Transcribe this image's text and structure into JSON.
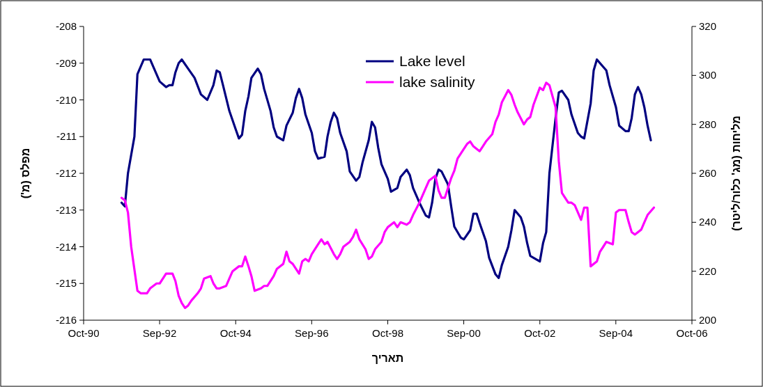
{
  "chart_data": {
    "type": "line",
    "xlabel": "תאריך",
    "ylabel": "מפלס (מ')",
    "y2label": "מליחות (מג' כלור/ליטר)",
    "xlim": [
      "1990-10-01",
      "2006-10-01"
    ],
    "xticks": [
      {
        "value": "1990-10-01",
        "label": "Oct-90"
      },
      {
        "value": "1992-09-30",
        "label": "Sep-92"
      },
      {
        "value": "1994-10-01",
        "label": "Oct-94"
      },
      {
        "value": "1996-09-30",
        "label": "Sep-96"
      },
      {
        "value": "1998-10-01",
        "label": "Oct-98"
      },
      {
        "value": "2000-09-30",
        "label": "Sep-00"
      },
      {
        "value": "2002-10-01",
        "label": "Oct-02"
      },
      {
        "value": "2004-09-30",
        "label": "Sep-04"
      },
      {
        "value": "2006-10-01",
        "label": "Oct-06"
      }
    ],
    "ylim": [
      -216,
      -208
    ],
    "yticks": [
      -216,
      -215,
      -214,
      -213,
      -212,
      -211,
      -210,
      -209,
      -208
    ],
    "y2lim": [
      200,
      320
    ],
    "y2ticks": [
      200,
      220,
      240,
      260,
      280,
      300,
      320
    ],
    "legend": "top",
    "line_style": "solid",
    "marker": "none",
    "series": [
      {
        "name": "Lake level",
        "color": "#000080",
        "x": [
          "1991-10",
          "1991-11",
          "1991-12",
          "1992-02",
          "1992-03",
          "1992-05",
          "1992-07",
          "1992-08",
          "1992-10",
          "1992-12",
          "1993-01",
          "1993-02",
          "1993-03",
          "1993-04",
          "1993-05",
          "1993-07",
          "1993-09",
          "1993-11",
          "1994-01",
          "1994-03",
          "1994-04",
          "1994-05",
          "1994-06",
          "1994-08",
          "1994-10",
          "1994-11",
          "1994-12",
          "1995-01",
          "1995-02",
          "1995-03",
          "1995-05",
          "1995-06",
          "1995-07",
          "1995-09",
          "1995-10",
          "1995-11",
          "1996-01",
          "1996-02",
          "1996-04",
          "1996-05",
          "1996-06",
          "1996-07",
          "1996-08",
          "1996-10",
          "1996-11",
          "1996-12",
          "1997-02",
          "1997-03",
          "1997-04",
          "1997-05",
          "1997-06",
          "1997-07",
          "1997-09",
          "1997-10",
          "1997-12",
          "1998-01",
          "1998-02",
          "1998-04",
          "1998-05",
          "1998-06",
          "1998-07",
          "1998-08",
          "1998-10",
          "1998-11",
          "1999-01",
          "1999-02",
          "1999-04",
          "1999-05",
          "1999-06",
          "1999-08",
          "1999-10",
          "1999-11",
          "1999-12",
          "2000-01",
          "2000-02",
          "2000-03",
          "2000-05",
          "2000-06",
          "2000-07",
          "2000-09",
          "2000-10",
          "2000-12",
          "2001-01",
          "2001-02",
          "2001-03",
          "2001-05",
          "2001-06",
          "2001-08",
          "2001-09",
          "2001-10",
          "2001-12",
          "2002-01",
          "2002-02",
          "2002-04",
          "2002-05",
          "2002-06",
          "2002-07",
          "2002-08",
          "2002-10",
          "2002-11",
          "2002-12",
          "2003-01",
          "2003-03",
          "2003-04",
          "2003-05",
          "2003-07",
          "2003-08",
          "2003-10",
          "2003-11",
          "2003-12",
          "2004-02",
          "2004-03",
          "2004-04",
          "2004-05",
          "2004-07",
          "2004-08",
          "2004-10",
          "2004-11",
          "2005-01",
          "2005-02",
          "2005-03",
          "2005-04",
          "2005-05",
          "2005-06",
          "2005-07",
          "2005-08",
          "2005-09"
        ],
        "values": [
          -212.8,
          -212.9,
          -212.0,
          -211.0,
          -209.3,
          -208.9,
          -208.9,
          -209.1,
          -209.5,
          -209.65,
          -209.6,
          -209.6,
          -209.25,
          -209.0,
          -208.9,
          -209.15,
          -209.4,
          -209.85,
          -210.0,
          -209.6,
          -209.2,
          -209.25,
          -209.6,
          -210.3,
          -210.8,
          -211.05,
          -210.95,
          -210.3,
          -209.9,
          -209.4,
          -209.15,
          -209.3,
          -209.7,
          -210.3,
          -210.75,
          -211.0,
          -211.1,
          -210.7,
          -210.35,
          -209.95,
          -209.7,
          -209.95,
          -210.4,
          -210.9,
          -211.4,
          -211.6,
          -211.55,
          -211.0,
          -210.6,
          -210.35,
          -210.5,
          -210.9,
          -211.4,
          -211.95,
          -212.2,
          -212.1,
          -211.7,
          -211.1,
          -210.6,
          -210.75,
          -211.3,
          -211.75,
          -212.15,
          -212.5,
          -212.4,
          -212.1,
          -211.9,
          -212.05,
          -212.4,
          -212.8,
          -213.15,
          -213.2,
          -212.8,
          -212.15,
          -211.9,
          -211.95,
          -212.3,
          -212.9,
          -213.45,
          -213.75,
          -213.8,
          -213.55,
          -213.1,
          -213.1,
          -213.35,
          -213.85,
          -214.3,
          -214.75,
          -214.85,
          -214.5,
          -214.0,
          -213.55,
          -213.0,
          -213.2,
          -213.45,
          -213.9,
          -214.25,
          -214.3,
          -214.4,
          -213.9,
          -213.6,
          -212.0,
          -210.5,
          -209.8,
          -209.75,
          -210.0,
          -210.4,
          -210.9,
          -211.0,
          -211.05,
          -210.1,
          -209.2,
          -208.9,
          -209.0,
          -209.2,
          -209.6,
          -210.2,
          -210.7,
          -210.85,
          -210.85,
          -210.5,
          -209.85,
          -209.65,
          -209.85,
          -210.2,
          -210.7,
          -211.1
        ]
      },
      {
        "name": "lake salinity",
        "color": "#ff00ff",
        "axis": "y2",
        "x": [
          "1991-10",
          "1991-11",
          "1991-12",
          "1992-01",
          "1992-03",
          "1992-04",
          "1992-06",
          "1992-07",
          "1992-09",
          "1992-10",
          "1992-11",
          "1992-12",
          "1993-02",
          "1993-03",
          "1993-04",
          "1993-05",
          "1993-06",
          "1993-07",
          "1993-08",
          "1993-10",
          "1993-11",
          "1993-12",
          "1994-02",
          "1994-03",
          "1994-04",
          "1994-05",
          "1994-07",
          "1994-08",
          "1994-09",
          "1994-11",
          "1994-12",
          "1995-01",
          "1995-02",
          "1995-03",
          "1995-04",
          "1995-06",
          "1995-07",
          "1995-08",
          "1995-10",
          "1995-11",
          "1996-01",
          "1996-02",
          "1996-03",
          "1996-04",
          "1996-06",
          "1996-07",
          "1996-08",
          "1996-09",
          "1996-10",
          "1996-12",
          "1997-01",
          "1997-02",
          "1997-03",
          "1997-05",
          "1997-06",
          "1997-07",
          "1997-08",
          "1997-10",
          "1997-11",
          "1997-12",
          "1998-01",
          "1998-03",
          "1998-04",
          "1998-05",
          "1998-06",
          "1998-08",
          "1998-09",
          "1998-10",
          "1998-12",
          "1999-01",
          "1999-02",
          "1999-04",
          "1999-05",
          "1999-06",
          "1999-08",
          "1999-10",
          "1999-11",
          "2000-01",
          "2000-02",
          "2000-03",
          "2000-04",
          "2000-06",
          "2000-07",
          "2000-08",
          "2000-10",
          "2000-11",
          "2000-12",
          "2001-01",
          "2001-03",
          "2001-04",
          "2001-05",
          "2001-07",
          "2001-08",
          "2001-09",
          "2001-10",
          "2001-12",
          "2002-01",
          "2002-02",
          "2002-03",
          "2002-05",
          "2002-06",
          "2002-07",
          "2002-08",
          "2002-10",
          "2002-11",
          "2002-12",
          "2003-01",
          "2003-03",
          "2003-04",
          "2003-05",
          "2003-07",
          "2003-08",
          "2003-09",
          "2003-11",
          "2003-12",
          "2004-01",
          "2004-02",
          "2004-04",
          "2004-05",
          "2004-06",
          "2004-07",
          "2004-09",
          "2004-10",
          "2004-11",
          "2005-01",
          "2005-02",
          "2005-03",
          "2005-04",
          "2005-06",
          "2005-07",
          "2005-08",
          "2005-10"
        ],
        "values": [
          250,
          249,
          244,
          230,
          212,
          211,
          211,
          213,
          215,
          215,
          217,
          219,
          219,
          216,
          210,
          207,
          205,
          206,
          208,
          211,
          213,
          217,
          218,
          215,
          213,
          213,
          214,
          217,
          220,
          222,
          222,
          226,
          222,
          218,
          212,
          213,
          214,
          214,
          218,
          221,
          223,
          228,
          224,
          223,
          219,
          224,
          225,
          224,
          227,
          231,
          233,
          231,
          232,
          227,
          225,
          227,
          230,
          232,
          234,
          237,
          233,
          229,
          225,
          226,
          229,
          232,
          236,
          238,
          240,
          238,
          240,
          239,
          240,
          243,
          248,
          254,
          257,
          259,
          253,
          250,
          250,
          258,
          261,
          266,
          270,
          272,
          273,
          271,
          269,
          271,
          273,
          276,
          281,
          284,
          289,
          294,
          292,
          288,
          285,
          280,
          282,
          283,
          288,
          295,
          294,
          297,
          296,
          287,
          265,
          252,
          248,
          248,
          247,
          241,
          246,
          246,
          222,
          224,
          228,
          230,
          232,
          231,
          244,
          245,
          245,
          240,
          236,
          235,
          237,
          240,
          243,
          246
        ]
      }
    ]
  }
}
